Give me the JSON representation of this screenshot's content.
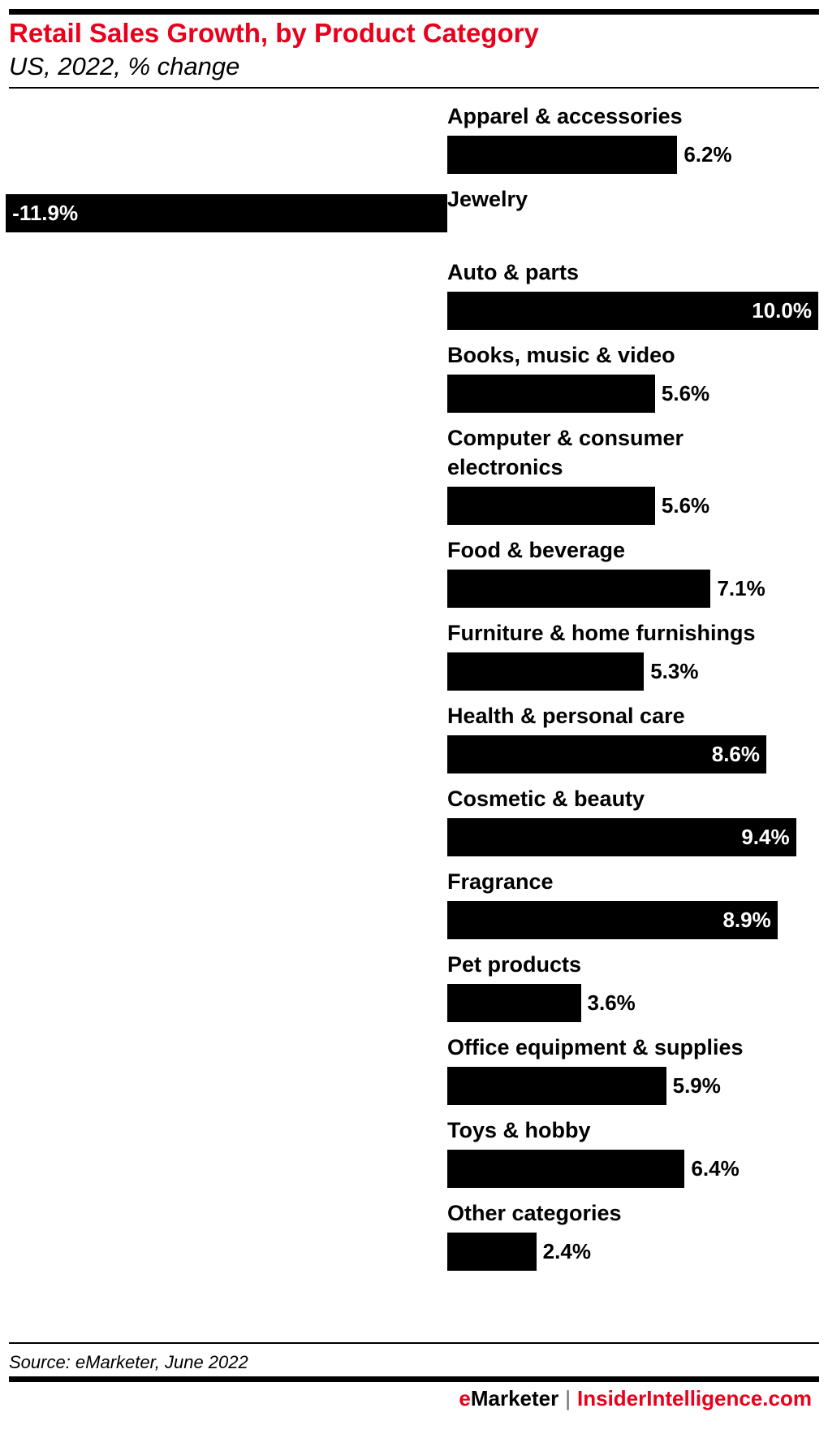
{
  "chart_data": {
    "type": "bar",
    "orientation": "horizontal",
    "title": "Retail Sales Growth, by Product Category",
    "subtitle": "US, 2022, % change",
    "categories": [
      "Apparel & accessories",
      "Jewelry",
      "Auto & parts",
      "Books, music & video",
      "Computer & consumer electronics",
      "Food & beverage",
      "Furniture & home furnishings",
      "Health & personal care",
      "Cosmetic & beauty",
      "Fragrance",
      "Pet products",
      "Office equipment & supplies",
      "Toys & hobby",
      "Other categories"
    ],
    "values": [
      6.2,
      -11.9,
      10.0,
      5.6,
      5.6,
      7.1,
      5.3,
      8.6,
      9.4,
      8.9,
      3.6,
      5.9,
      6.4,
      2.4
    ],
    "labels": [
      "6.2%",
      "-11.9%",
      "10.0%",
      "5.6%",
      "5.6%",
      "7.1%",
      "5.3%",
      "8.6%",
      "9.4%",
      "8.9%",
      "3.6%",
      "5.9%",
      "6.4%",
      "2.4%"
    ],
    "bar_color": "#000000",
    "grid": false,
    "legend": "none"
  },
  "header": {
    "title": "Retail Sales Growth, by Product Category",
    "subtitle": "US, 2022, % change",
    "title_color": "#e8001c"
  },
  "footer": {
    "source": "Source: eMarketer, June 2022",
    "brand_left": "eMarketer",
    "separator": "|",
    "brand_right": "InsiderIntelligence.com"
  }
}
